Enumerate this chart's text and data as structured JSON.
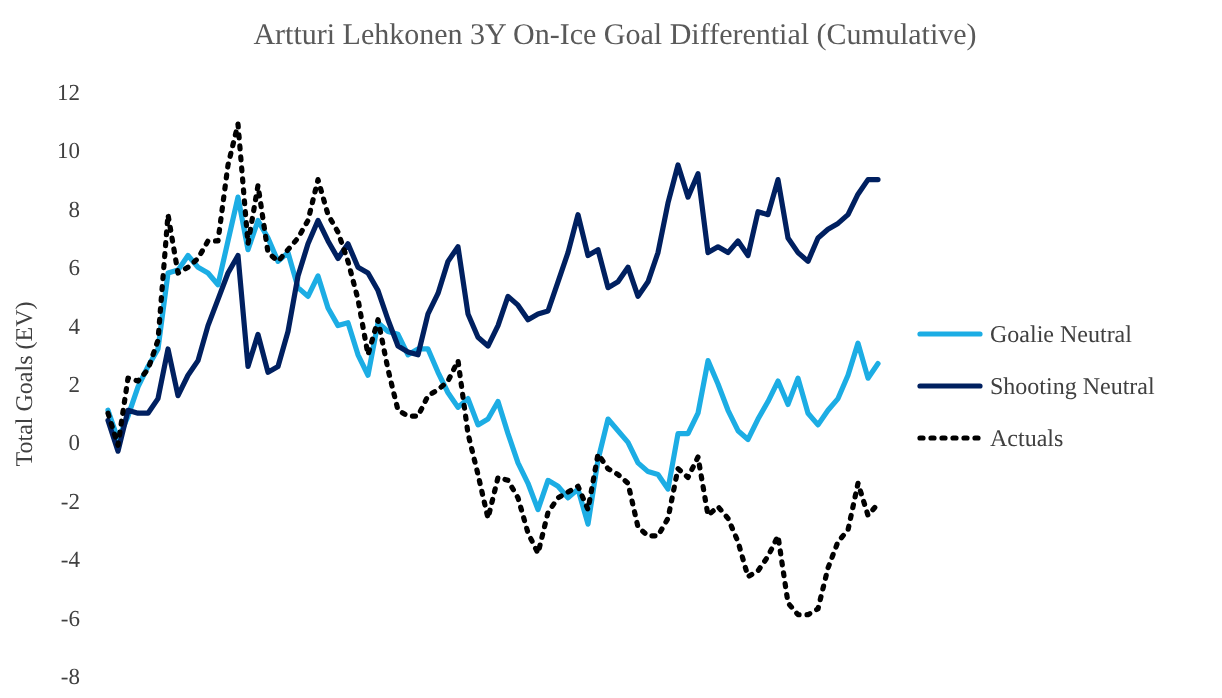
{
  "chart_data": {
    "type": "line",
    "title": "Artturi Lehkonen 3Y On-Ice Goal Differential (Cumulative)",
    "ylabel": "Total Goals (EV)",
    "categories": [
      null,
      null,
      null,
      null,
      null,
      null,
      null,
      null,
      null,
      null,
      null,
      null,
      null,
      null,
      null,
      null,
      null,
      null,
      null,
      null,
      null,
      null,
      null,
      null,
      null,
      null,
      null,
      null,
      null,
      null,
      null,
      null,
      null,
      null,
      null,
      null,
      null,
      null,
      null,
      null,
      null,
      null,
      null,
      null,
      null,
      null,
      null,
      null,
      null,
      null,
      null,
      null,
      null,
      null,
      null,
      null,
      null,
      null,
      null,
      null,
      null,
      null,
      null,
      null,
      null,
      null,
      null,
      null,
      null,
      null,
      null,
      null,
      null,
      null,
      null,
      null,
      null,
      null
    ],
    "ylim": [
      -8,
      12
    ],
    "yticks": [
      -8,
      -6,
      -4,
      -2,
      0,
      2,
      4,
      6,
      8,
      10,
      12
    ],
    "grid": false,
    "legend": "right",
    "marker": "none",
    "series": [
      {
        "name": "Goalie Neutral",
        "color": "#1cade4",
        "line_style": "solid",
        "values": [
          1.1,
          0.1,
          0.9,
          1.9,
          2.6,
          3.2,
          5.8,
          5.9,
          6.4,
          6.0,
          5.8,
          5.4,
          6.9,
          8.4,
          6.6,
          7.6,
          7.0,
          6.2,
          6.5,
          5.3,
          5.0,
          5.7,
          4.6,
          4.0,
          4.1,
          3.0,
          2.3,
          4.1,
          3.8,
          3.7,
          3.0,
          3.2,
          3.2,
          2.4,
          1.7,
          1.2,
          1.5,
          0.6,
          0.8,
          1.4,
          0.3,
          -0.7,
          -1.4,
          -2.3,
          -1.3,
          -1.5,
          -1.9,
          -1.6,
          -2.8,
          -0.6,
          0.8,
          0.4,
          0.0,
          -0.7,
          -1.0,
          -1.1,
          -1.6,
          0.3,
          0.3,
          1.0,
          2.8,
          2.0,
          1.1,
          0.4,
          0.1,
          0.8,
          1.4,
          2.1,
          1.3,
          2.2,
          1.0,
          0.6,
          1.1,
          1.5,
          2.3,
          3.4,
          2.2,
          2.7
        ]
      },
      {
        "name": "Shooting Neutral",
        "color": "#002060",
        "line_style": "solid",
        "values": [
          0.75,
          -0.3,
          1.1,
          1.0,
          1.0,
          1.5,
          3.2,
          1.6,
          2.3,
          2.8,
          4.0,
          4.9,
          5.8,
          6.4,
          2.6,
          3.7,
          2.4,
          2.6,
          3.8,
          5.7,
          6.8,
          7.6,
          6.9,
          6.3,
          6.8,
          6.0,
          5.8,
          5.2,
          4.2,
          3.3,
          3.1,
          3.0,
          4.4,
          5.1,
          6.2,
          6.7,
          4.4,
          3.6,
          3.3,
          4.0,
          5.0,
          4.7,
          4.2,
          4.4,
          4.5,
          5.5,
          6.5,
          7.8,
          6.4,
          6.6,
          5.3,
          5.5,
          6.0,
          5.0,
          5.5,
          6.5,
          8.2,
          9.5,
          8.4,
          9.2,
          6.5,
          6.7,
          6.5,
          6.9,
          6.4,
          7.9,
          7.8,
          9.0,
          7.0,
          6.5,
          6.2,
          7.0,
          7.3,
          7.5,
          7.8,
          8.5,
          9.0,
          9.0
        ]
      },
      {
        "name": "Actuals",
        "color": "#000000",
        "line_style": "dotted",
        "values": [
          1.0,
          -0.1,
          2.2,
          2.1,
          2.5,
          3.5,
          7.8,
          5.8,
          6.0,
          6.3,
          6.9,
          6.9,
          9.5,
          10.9,
          6.8,
          8.8,
          6.5,
          6.2,
          6.6,
          7.0,
          7.6,
          9.0,
          7.8,
          7.2,
          6.2,
          4.9,
          3.0,
          4.2,
          2.5,
          1.1,
          0.9,
          0.9,
          1.6,
          1.8,
          2.1,
          2.8,
          0.3,
          -1.1,
          -2.6,
          -1.2,
          -1.3,
          -1.9,
          -3.1,
          -3.8,
          -2.4,
          -1.9,
          -1.7,
          -1.5,
          -2.3,
          -0.4,
          -0.9,
          -1.1,
          -1.4,
          -2.9,
          -3.2,
          -3.2,
          -2.6,
          -0.9,
          -1.2,
          -0.5,
          -2.5,
          -2.2,
          -2.6,
          -3.4,
          -4.6,
          -4.4,
          -3.9,
          -3.2,
          -5.5,
          -5.9,
          -5.9,
          -5.7,
          -4.3,
          -3.4,
          -3.0,
          -1.4,
          -2.5,
          -2.1
        ]
      }
    ]
  }
}
